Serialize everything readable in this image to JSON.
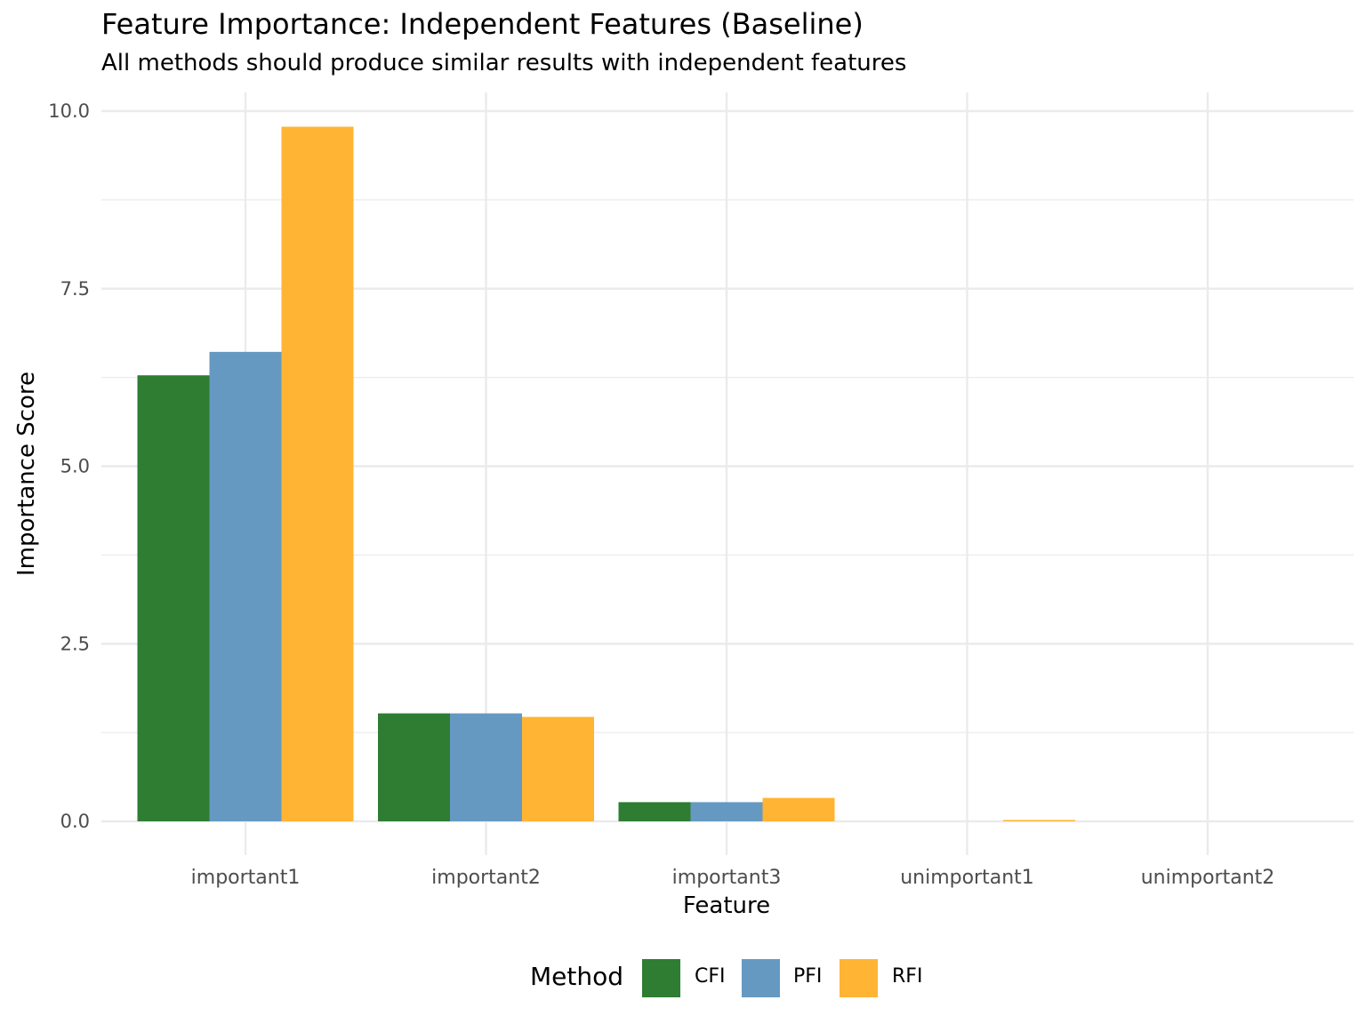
{
  "chart_data": {
    "type": "bar",
    "title": "Feature Importance: Independent Features (Baseline)",
    "subtitle": "All methods should produce similar results with independent features",
    "xlabel": "Feature",
    "ylabel": "Importance Score",
    "categories": [
      "important1",
      "important2",
      "important3",
      "unimportant1",
      "unimportant2"
    ],
    "series": [
      {
        "name": "CFI",
        "color": "#2E7D32",
        "values": [
          6.28,
          1.52,
          0.27,
          0.0,
          0.0
        ]
      },
      {
        "name": "PFI",
        "color": "#6699C2",
        "values": [
          6.61,
          1.52,
          0.27,
          0.0,
          0.0
        ]
      },
      {
        "name": "RFI",
        "color": "#FFB433",
        "values": [
          9.78,
          1.47,
          0.33,
          0.01,
          0.0
        ]
      }
    ],
    "ylim": [
      0,
      10
    ],
    "yticks": [
      "0.0",
      "2.5",
      "5.0",
      "7.5",
      "10.0"
    ],
    "grid": true,
    "legend": {
      "title": "Method",
      "position": "bottom"
    }
  }
}
